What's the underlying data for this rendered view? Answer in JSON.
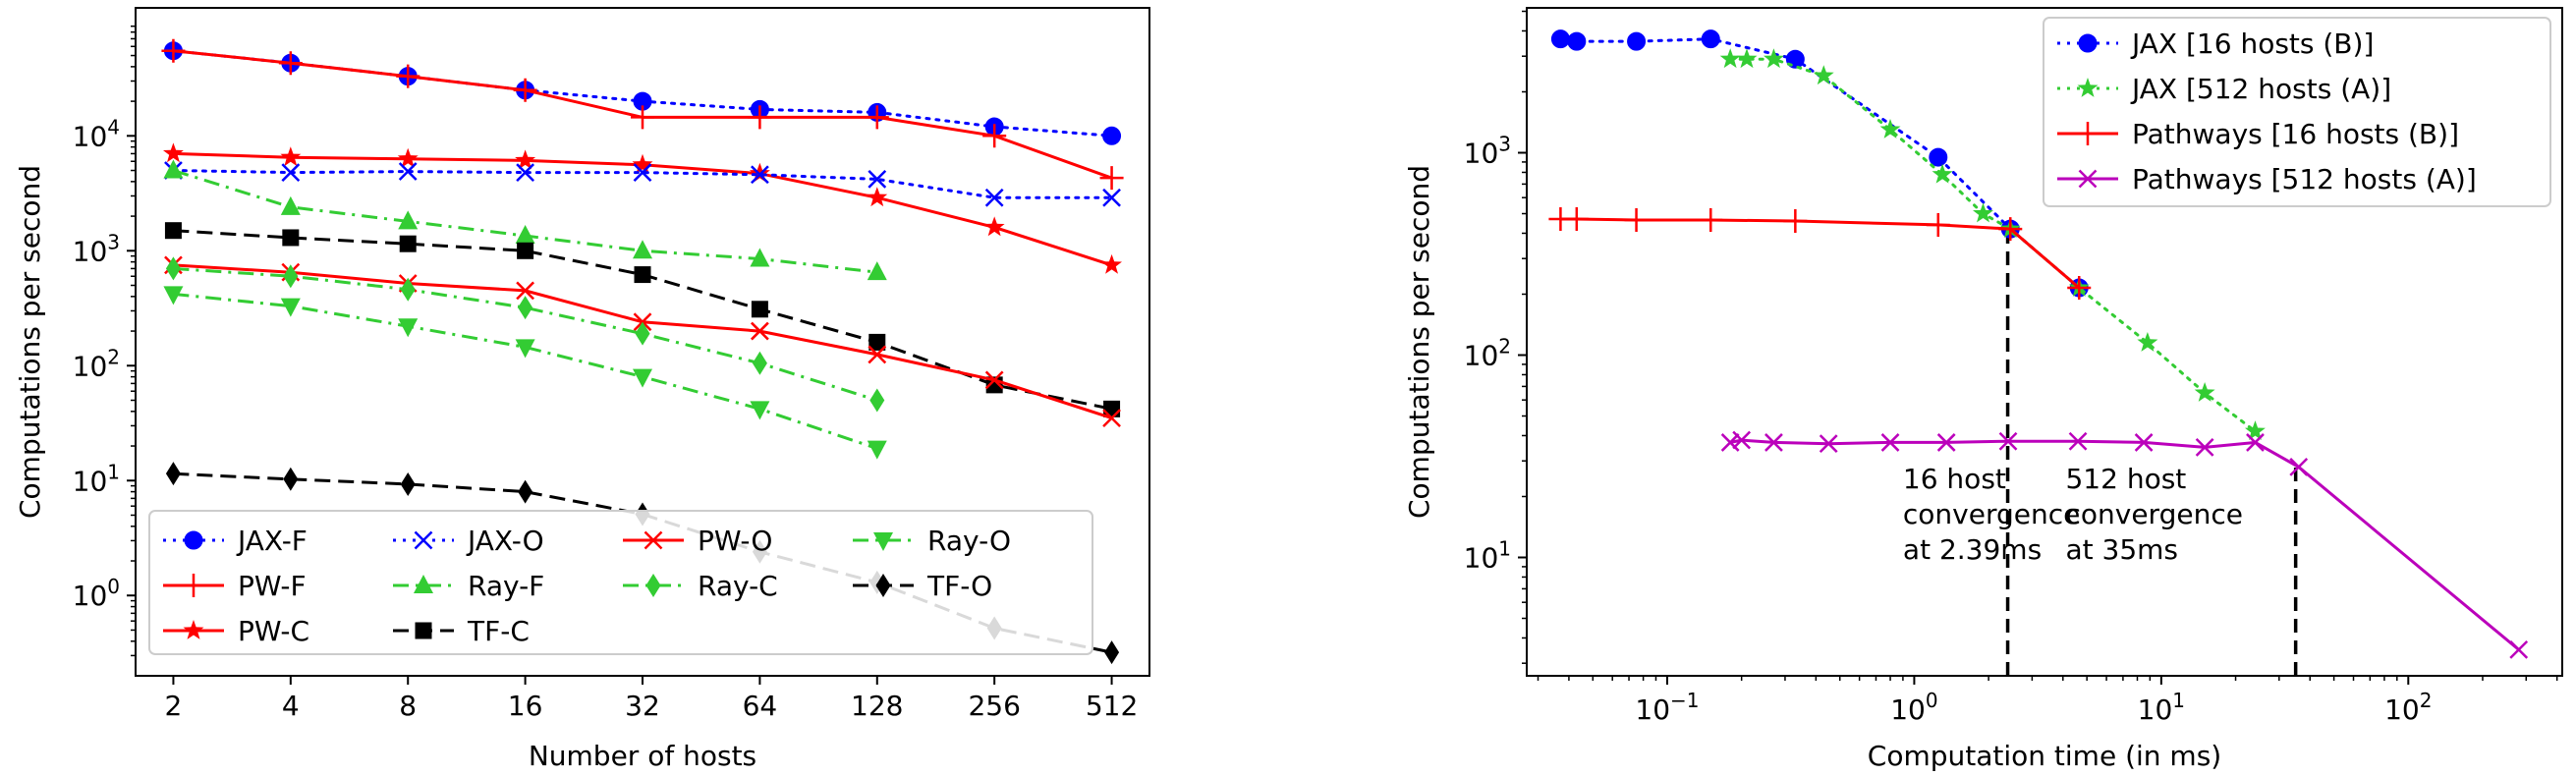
{
  "chart_data": [
    {
      "type": "line",
      "xscale": "log2",
      "yscale": "log",
      "xlabel": "Number of hosts",
      "ylabel": "Computations per second",
      "x_ticks": [
        2,
        4,
        8,
        16,
        32,
        64,
        128,
        256,
        512
      ],
      "x_tick_labels": [
        "2",
        "4",
        "8",
        "16",
        "32",
        "64",
        "128",
        "256",
        "512"
      ],
      "y_ticks": [
        1,
        10,
        100,
        1000,
        10000
      ],
      "y_tick_labels": [
        "10^0",
        "10^1",
        "10^2",
        "10^3",
        "10^4"
      ],
      "xlim": [
        1.6,
        640
      ],
      "ylim": [
        0.2,
        130000
      ],
      "legend_position": "lower-left",
      "legend_columns": 4,
      "series": [
        {
          "name": "JAX-F",
          "color": "#0000ff",
          "dash": "dotted",
          "marker": "circle",
          "x": [
            2,
            4,
            8,
            16,
            32,
            64,
            128,
            256,
            512
          ],
          "y": [
            55000,
            43000,
            33000,
            25000,
            20000,
            17000,
            16000,
            12000,
            10000
          ]
        },
        {
          "name": "PW-F",
          "color": "#ff0000",
          "dash": "solid",
          "marker": "plus",
          "x": [
            2,
            4,
            8,
            16,
            32,
            64,
            128,
            256,
            512
          ],
          "y": [
            55000,
            43000,
            33000,
            25000,
            14500,
            14500,
            14500,
            10000,
            4300
          ]
        },
        {
          "name": "PW-C",
          "color": "#ff0000",
          "dash": "solid",
          "marker": "star",
          "x": [
            2,
            4,
            8,
            16,
            32,
            64,
            128,
            256,
            512
          ],
          "y": [
            7000,
            6500,
            6300,
            6100,
            5600,
            4700,
            2900,
            1600,
            750
          ]
        },
        {
          "name": "JAX-O",
          "color": "#0000ff",
          "dash": "dotted",
          "marker": "x",
          "x": [
            2,
            4,
            8,
            16,
            32,
            64,
            128,
            256,
            512
          ],
          "y": [
            5000,
            4800,
            4900,
            4800,
            4800,
            4600,
            4200,
            2900,
            2900
          ]
        },
        {
          "name": "Ray-F",
          "color": "#33cc33",
          "dash": "dashdot",
          "marker": "triangle-up",
          "x": [
            2,
            4,
            8,
            16,
            32,
            64,
            128
          ],
          "y": [
            5000,
            2400,
            1800,
            1350,
            1000,
            850,
            650
          ]
        },
        {
          "name": "TF-C",
          "color": "#000000",
          "dash": "dashed",
          "marker": "square",
          "x": [
            2,
            4,
            8,
            16,
            32,
            64,
            128,
            256,
            512
          ],
          "y": [
            1500,
            1300,
            1150,
            1000,
            620,
            310,
            160,
            68,
            42
          ]
        },
        {
          "name": "PW-O",
          "color": "#ff0000",
          "dash": "solid",
          "marker": "x",
          "x": [
            2,
            4,
            8,
            16,
            32,
            64,
            128,
            256,
            512
          ],
          "y": [
            750,
            650,
            520,
            450,
            240,
            200,
            125,
            75,
            35
          ]
        },
        {
          "name": "Ray-C",
          "color": "#33cc33",
          "dash": "dashdot",
          "marker": "diamond",
          "x": [
            2,
            4,
            8,
            16,
            32,
            64,
            128
          ],
          "y": [
            700,
            600,
            460,
            320,
            190,
            105,
            50
          ]
        },
        {
          "name": "Ray-O",
          "color": "#33cc33",
          "dash": "dashdot",
          "marker": "triangle-down",
          "x": [
            2,
            4,
            8,
            16,
            32,
            64,
            128
          ],
          "y": [
            420,
            330,
            220,
            145,
            80,
            42,
            19
          ]
        },
        {
          "name": "TF-O",
          "color": "#000000",
          "dash": "dashed",
          "marker": "diamond",
          "x": [
            2,
            4,
            8,
            16,
            32,
            64,
            128,
            256,
            512
          ],
          "y": [
            11.5,
            10.3,
            9.3,
            8,
            5.1,
            2.4,
            1.3,
            0.52,
            0.32
          ]
        }
      ],
      "legend_order": [
        "JAX-F",
        "JAX-O",
        "PW-O",
        "Ray-O",
        "PW-F",
        "Ray-F",
        "Ray-C",
        "TF-O",
        "PW-C",
        "TF-C"
      ]
    },
    {
      "type": "line",
      "xscale": "log",
      "yscale": "log",
      "xlabel": "Computation time (in ms)",
      "ylabel": "Computations per second",
      "x_ticks": [
        0.1,
        1,
        10,
        100
      ],
      "x_tick_labels": [
        "10^-1",
        "10^0",
        "10^1",
        "10^2"
      ],
      "y_ticks": [
        10,
        100,
        1000
      ],
      "y_tick_labels": [
        "10^1",
        "10^2",
        "10^3"
      ],
      "xlim": [
        0.027,
        420
      ],
      "ylim": [
        2.6,
        5200
      ],
      "legend_position": "top-right",
      "series": [
        {
          "name": "JAX         [16 hosts (B)]",
          "color": "#0000ff",
          "dash": "dotted",
          "marker": "circle",
          "x": [
            0.037,
            0.043,
            0.075,
            0.15,
            0.33,
            1.25,
            2.45,
            4.65
          ],
          "y": [
            3650,
            3550,
            3550,
            3650,
            2900,
            950,
            420,
            215
          ]
        },
        {
          "name": "JAX         [512 hosts (A)]",
          "color": "#33cc33",
          "dash": "dotted",
          "marker": "star",
          "x": [
            0.18,
            0.21,
            0.27,
            0.43,
            0.8,
            1.3,
            1.9,
            2.45,
            4.65,
            8.8,
            15,
            24
          ],
          "y": [
            2900,
            2900,
            2900,
            2400,
            1300,
            780,
            500,
            420,
            215,
            115,
            65,
            42
          ]
        },
        {
          "name": "Pathways [16 hosts (B)]",
          "color": "#ff0000",
          "dash": "solid",
          "marker": "plus",
          "x": [
            0.037,
            0.043,
            0.075,
            0.15,
            0.33,
            1.25,
            2.45,
            4.65
          ],
          "y": [
            470,
            470,
            465,
            465,
            460,
            440,
            420,
            215
          ]
        },
        {
          "name": "Pathways [512 hosts (A)]",
          "color": "#bb00bb",
          "dash": "solid",
          "marker": "x",
          "x": [
            0.18,
            0.2,
            0.27,
            0.45,
            0.8,
            1.35,
            2.4,
            4.6,
            8.5,
            15,
            24,
            36,
            280
          ],
          "y": [
            37,
            38,
            37,
            36.5,
            37,
            37,
            37.5,
            37.5,
            37,
            35,
            37,
            28,
            3.5
          ]
        }
      ],
      "vlines": [
        {
          "x": 2.39,
          "y_top": 420
        },
        {
          "x": 35,
          "y_top": 28
        }
      ],
      "annotations": [
        {
          "text": [
            "16 host",
            "convergence",
            "at 2.39ms"
          ],
          "x": 0.9,
          "y": 22
        },
        {
          "text": [
            "512 host",
            "convergence",
            "at 35ms"
          ],
          "x": 4.1,
          "y": 22
        }
      ]
    }
  ]
}
